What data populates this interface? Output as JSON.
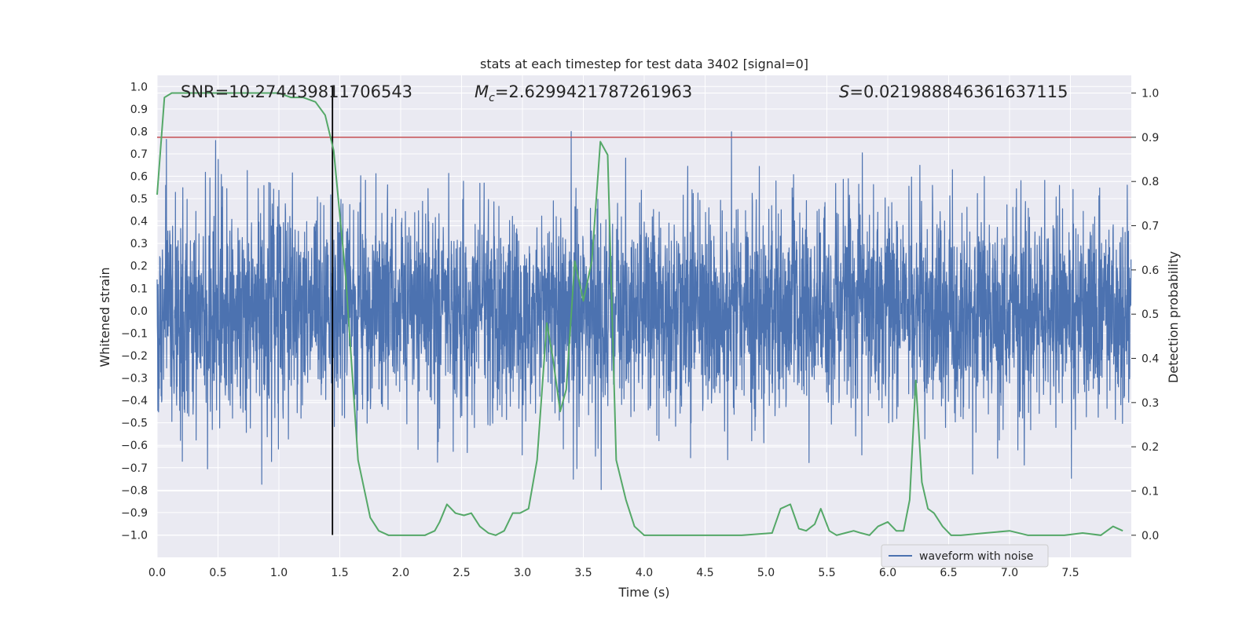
{
  "chart_data": {
    "type": "line",
    "title": "stats at each timestep for test data 3402 [signal=0]",
    "xlabel": "Time (s)",
    "ylabel": "Whitened strain",
    "ylabel_right": "Detection probability",
    "xlim": [
      0.0,
      8.0
    ],
    "ylim": [
      -1.1,
      1.05
    ],
    "ylim_right": [
      -0.05,
      1.04
    ],
    "x_ticks": [
      0.0,
      0.5,
      1.0,
      1.5,
      2.0,
      2.5,
      3.0,
      3.5,
      4.0,
      4.5,
      5.0,
      5.5,
      6.0,
      6.5,
      7.0,
      7.5
    ],
    "x_tick_labels": [
      "0.0",
      "0.5",
      "1.0",
      "1.5",
      "2.0",
      "2.5",
      "3.0",
      "3.5",
      "4.0",
      "4.5",
      "5.0",
      "5.5",
      "6.0",
      "6.5",
      "7.0",
      "7.5"
    ],
    "y_ticks": [
      1.0,
      0.9,
      0.8,
      0.7,
      0.6,
      0.5,
      0.4,
      0.3,
      0.2,
      0.1,
      0.0,
      -0.1,
      -0.2,
      -0.3,
      -0.4,
      -0.5,
      -0.6,
      -0.7,
      -0.8,
      -0.9,
      -1.0
    ],
    "y_tick_labels": [
      "1.0",
      "0.9",
      "0.8",
      "0.7",
      "0.6",
      "0.5",
      "0.4",
      "0.3",
      "0.2",
      "0.1",
      "0.0",
      "−0.1",
      "−0.2",
      "−0.3",
      "−0.4",
      "−0.5",
      "−0.6",
      "−0.7",
      "−0.8",
      "−0.9",
      "−1.0"
    ],
    "y_right_ticks": [
      1.0,
      0.9,
      0.8,
      0.7,
      0.6,
      0.5,
      0.4,
      0.3,
      0.2,
      0.1,
      0.0
    ],
    "y_right_tick_labels": [
      "1.0",
      "0.9",
      "0.8",
      "0.7",
      "0.6",
      "0.5",
      "0.4",
      "0.3",
      "0.2",
      "0.1",
      "0.0"
    ],
    "grid": true,
    "annotations": {
      "snr": "SNR=10.274439811706543",
      "mc_symbol": "M",
      "mc_subscript": "c",
      "mc_value": "=2.6299421787261963",
      "s_symbol": "S",
      "s_value": "=0.021988846361637115"
    },
    "legend": {
      "position": "lower-right",
      "entries": [
        "waveform with noise"
      ]
    },
    "series": [
      {
        "name": "waveform with noise",
        "axis": "left",
        "kind": "noise",
        "duration": 8.0,
        "samples": 4096,
        "seed": 3402,
        "amplitude_sigma": 0.2,
        "color": "#4c72b0"
      },
      {
        "name": "Detection probability",
        "axis": "right",
        "color": "#55a868",
        "x": [
          0.0,
          0.06,
          0.12,
          0.25,
          0.5,
          0.75,
          1.0,
          1.1,
          1.2,
          1.3,
          1.38,
          1.45,
          1.55,
          1.65,
          1.75,
          1.82,
          1.9,
          2.0,
          2.1,
          2.2,
          2.28,
          2.32,
          2.38,
          2.45,
          2.52,
          2.58,
          2.65,
          2.72,
          2.78,
          2.85,
          2.92,
          2.98,
          3.05,
          3.12,
          3.2,
          3.25,
          3.31,
          3.36,
          3.43,
          3.5,
          3.57,
          3.64,
          3.7,
          3.77,
          3.85,
          3.92,
          4.0,
          4.2,
          4.5,
          4.8,
          5.05,
          5.12,
          5.2,
          5.27,
          5.33,
          5.4,
          5.45,
          5.52,
          5.58,
          5.65,
          5.72,
          5.78,
          5.85,
          5.92,
          6.0,
          6.07,
          6.13,
          6.18,
          6.23,
          6.28,
          6.33,
          6.38,
          6.45,
          6.52,
          6.6,
          6.8,
          7.0,
          7.15,
          7.3,
          7.45,
          7.6,
          7.75,
          7.85,
          7.93
        ],
        "y": [
          0.77,
          0.99,
          1.0,
          1.0,
          1.0,
          1.0,
          1.0,
          0.99,
          0.99,
          0.98,
          0.95,
          0.87,
          0.58,
          0.17,
          0.04,
          0.01,
          0.0,
          0.0,
          0.0,
          0.0,
          0.01,
          0.03,
          0.07,
          0.05,
          0.045,
          0.05,
          0.02,
          0.005,
          0.0,
          0.01,
          0.05,
          0.05,
          0.06,
          0.17,
          0.48,
          0.4,
          0.28,
          0.33,
          0.62,
          0.53,
          0.62,
          0.89,
          0.86,
          0.17,
          0.08,
          0.02,
          0.0,
          0.0,
          0.0,
          0.0,
          0.005,
          0.06,
          0.07,
          0.015,
          0.01,
          0.025,
          0.06,
          0.01,
          0.0,
          0.005,
          0.01,
          0.005,
          0.0,
          0.02,
          0.03,
          0.01,
          0.01,
          0.08,
          0.35,
          0.12,
          0.06,
          0.05,
          0.02,
          0.0,
          0.0,
          0.005,
          0.01,
          0.0,
          0.0,
          0.0,
          0.005,
          0.0,
          0.02,
          0.01
        ]
      }
    ],
    "threshold": {
      "name": "threshold",
      "axis": "right",
      "value": 0.9,
      "color": "#c44e52"
    },
    "vline": {
      "name": "peak-time",
      "x": 1.44,
      "y_from": -1.0,
      "y_to": 1.0,
      "color": "#000000"
    },
    "background": "#eaeaf2",
    "grid_color": "#ffffff"
  }
}
